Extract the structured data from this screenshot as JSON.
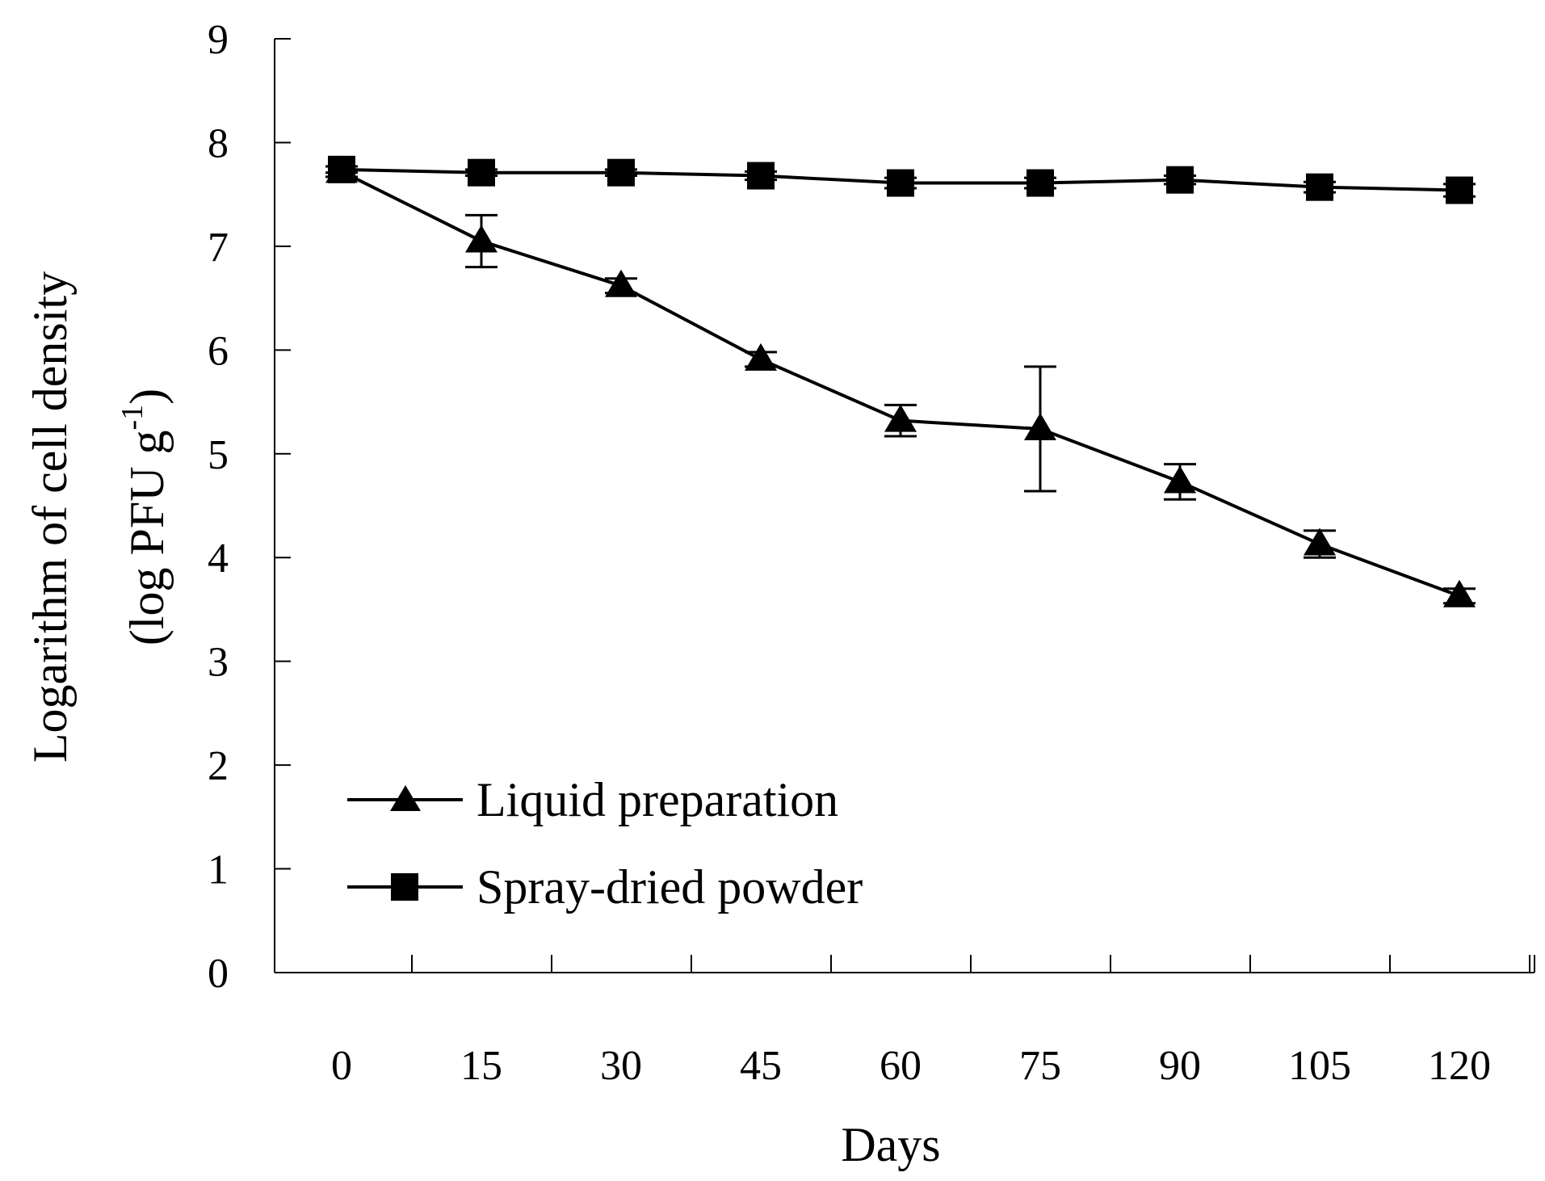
{
  "chart_data": {
    "type": "line",
    "x": [
      0,
      15,
      30,
      45,
      60,
      75,
      90,
      105,
      120
    ],
    "x_tick_labels": [
      "0",
      "15",
      "30",
      "45",
      "60",
      "75",
      "90",
      "105",
      "120"
    ],
    "xlabel": "Days",
    "ylabel_line1": "Logarithm of cell density",
    "ylabel_line2_prefix": "(log PFU g",
    "ylabel_line2_superscript": "-1",
    "ylabel_line2_suffix": ")",
    "ylim": [
      0,
      9
    ],
    "y_tick_labels": [
      "0",
      "1",
      "2",
      "3",
      "4",
      "5",
      "6",
      "7",
      "8",
      "9"
    ],
    "grid": false,
    "legend_position": "bottom-left",
    "series": [
      {
        "name": "Liquid preparation",
        "marker": "triangle",
        "color": "#000000",
        "values": [
          7.72,
          7.05,
          6.62,
          5.91,
          5.32,
          5.24,
          4.73,
          4.13,
          3.63
        ],
        "error": [
          0.05,
          0.25,
          0.07,
          0.07,
          0.15,
          0.6,
          0.17,
          0.13,
          0.07
        ]
      },
      {
        "name": "Spray-dried powder",
        "marker": "square",
        "color": "#000000",
        "values": [
          7.74,
          7.71,
          7.71,
          7.68,
          7.61,
          7.61,
          7.64,
          7.57,
          7.54
        ],
        "error": [
          0.03,
          0.03,
          0.03,
          0.04,
          0.05,
          0.05,
          0.04,
          0.05,
          0.06
        ]
      }
    ]
  }
}
